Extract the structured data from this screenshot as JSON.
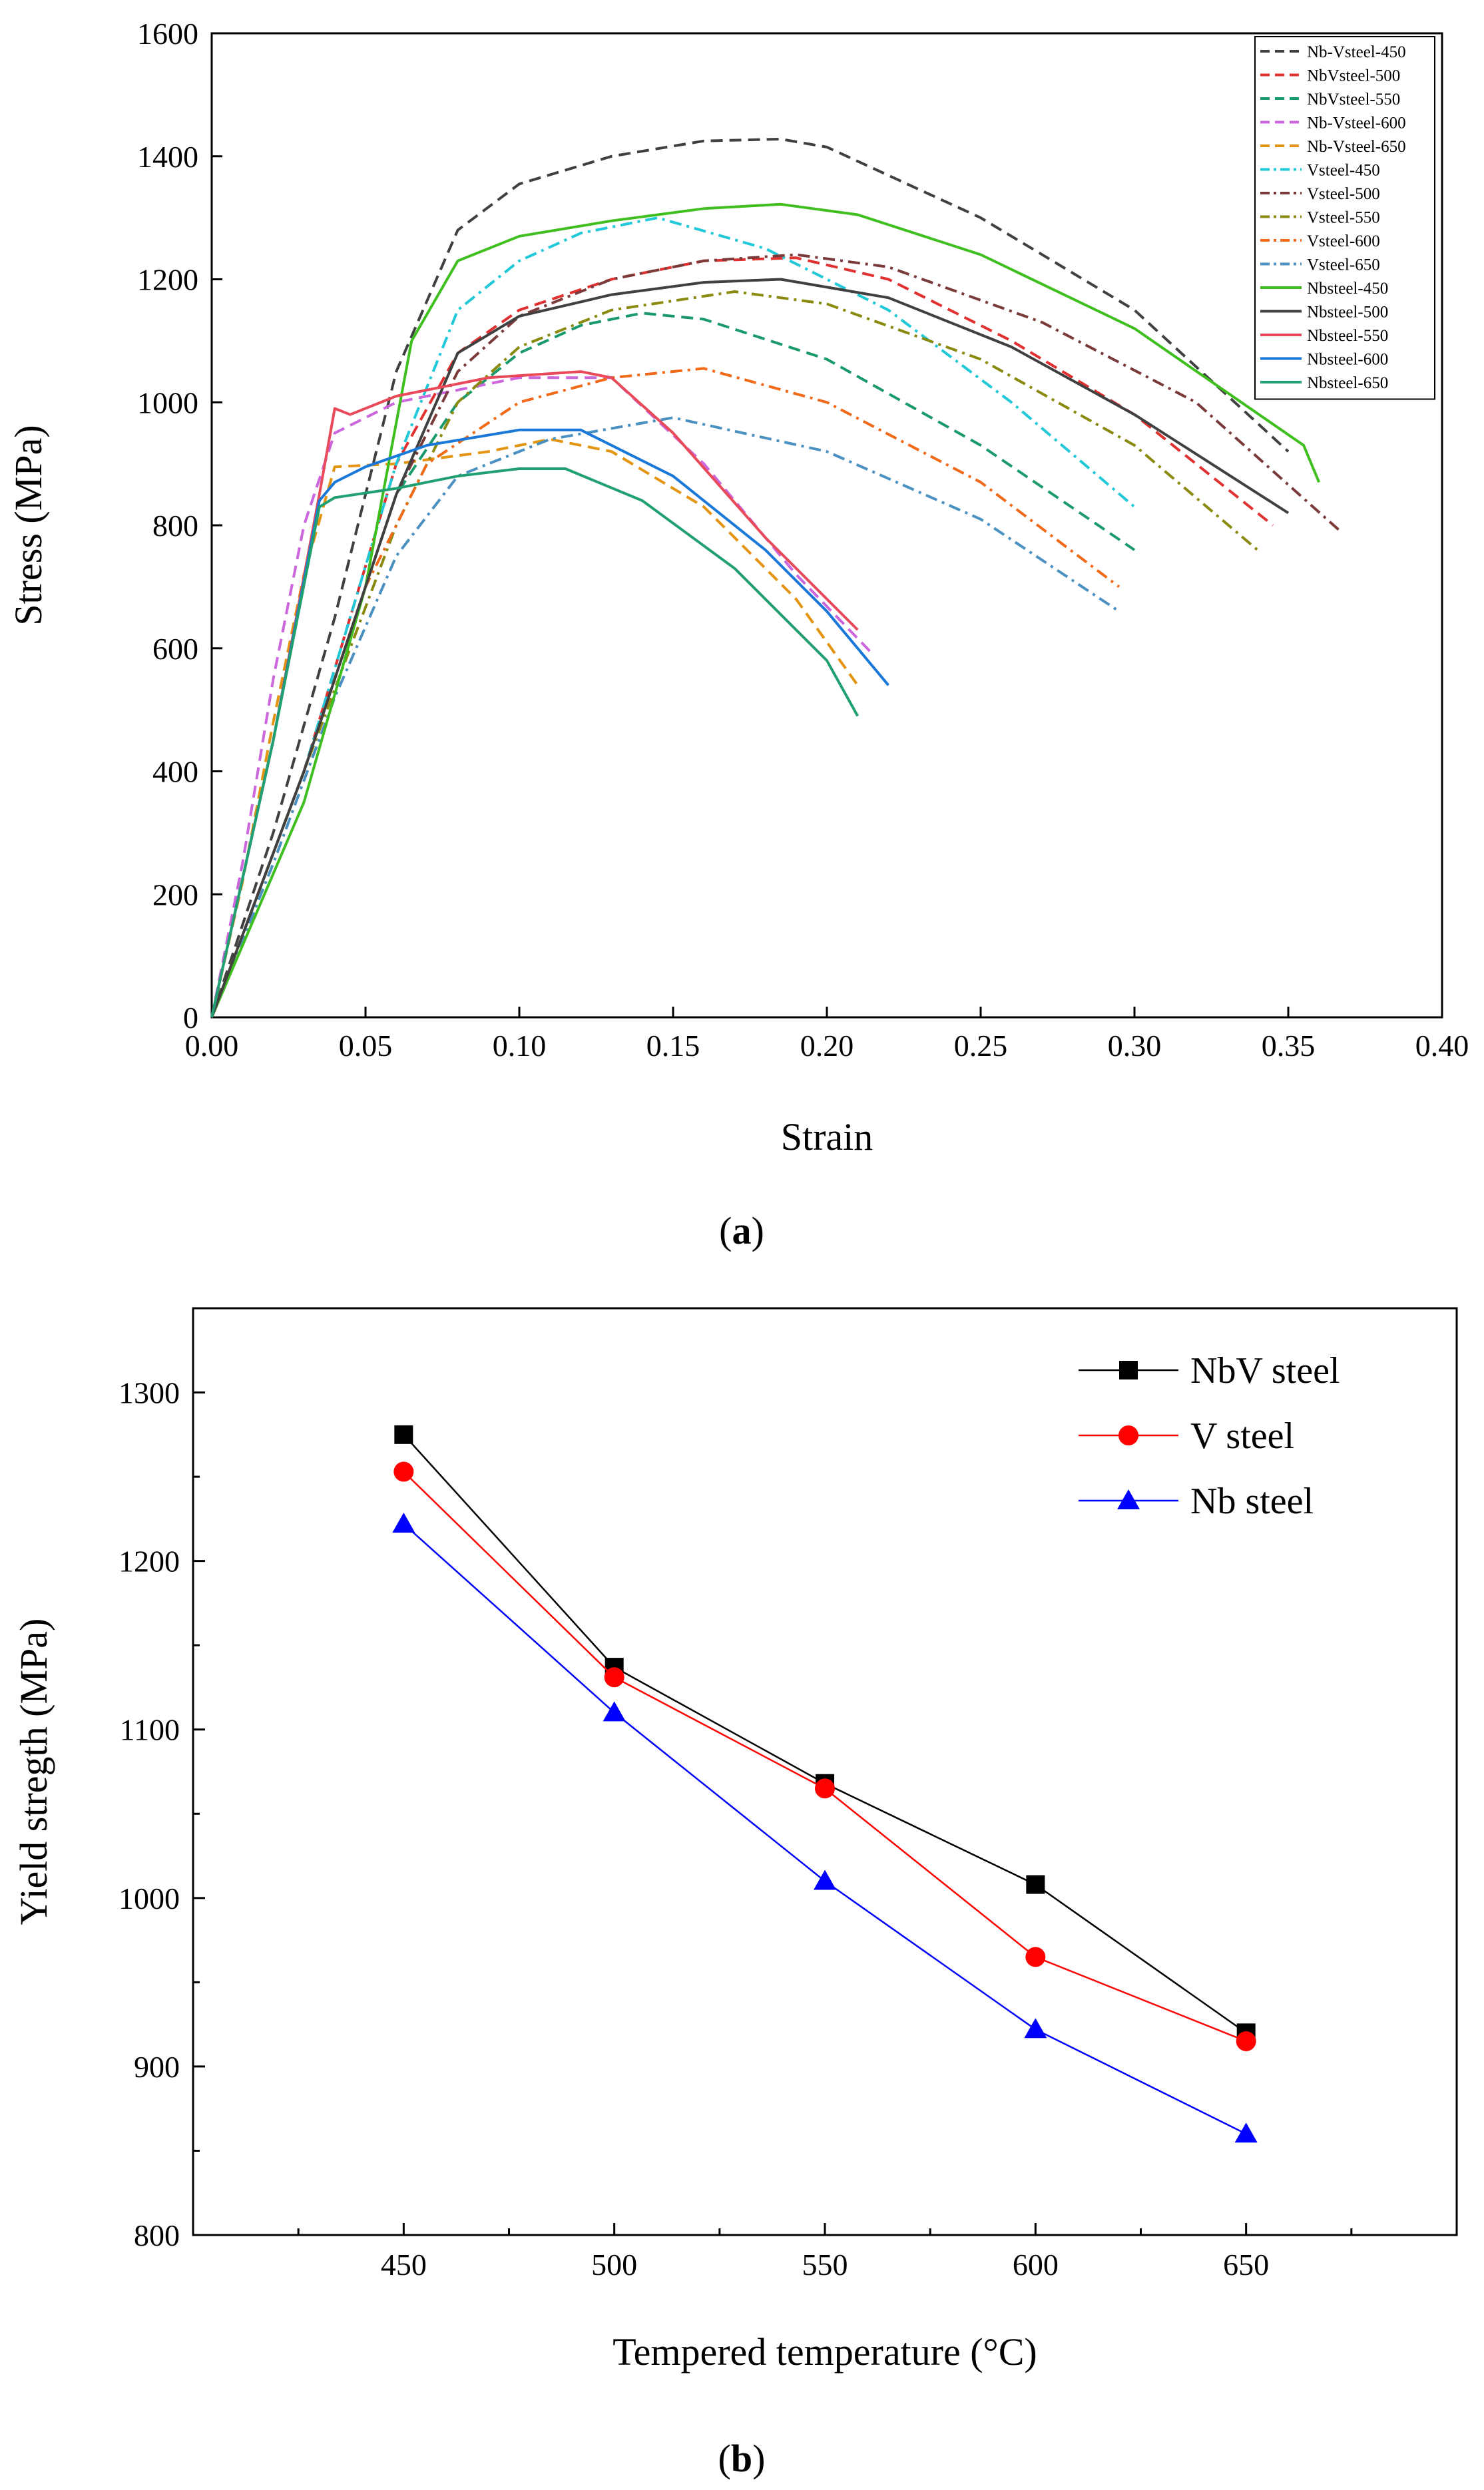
{
  "chart_data": [
    {
      "type": "line",
      "panel": "a",
      "caption_open": "(",
      "caption_letter": "a",
      "caption_close": ")",
      "xlabel": "Strain",
      "ylabel": "Stress (MPa)",
      "xlim": [
        0,
        0.4
      ],
      "ylim": [
        0,
        1600
      ],
      "xticks": [
        0.0,
        0.05,
        0.1,
        0.15,
        0.2,
        0.25,
        0.3,
        0.35,
        0.4
      ],
      "xtick_labels": [
        "0.00",
        "0.05",
        "0.10",
        "0.15",
        "0.20",
        "0.25",
        "0.30",
        "0.35",
        "0.40"
      ],
      "yticks": [
        0,
        200,
        400,
        600,
        800,
        1000,
        1200,
        1400,
        1600
      ],
      "ytick_labels": [
        "0",
        "200",
        "400",
        "600",
        "800",
        "1000",
        "1200",
        "1400",
        "1600"
      ],
      "legend_position": "top-right",
      "series": [
        {
          "name": "Nb-Vsteel-450",
          "color": "#404040",
          "dash": "dash",
          "x": [
            0,
            0.02,
            0.04,
            0.06,
            0.08,
            0.1,
            0.13,
            0.16,
            0.185,
            0.2,
            0.25,
            0.3,
            0.35
          ],
          "y": [
            0,
            300,
            650,
            1050,
            1280,
            1355,
            1400,
            1425,
            1428,
            1415,
            1300,
            1150,
            920
          ]
        },
        {
          "name": "NbVsteel-500",
          "color": "#e03030",
          "dash": "dash",
          "x": [
            0,
            0.03,
            0.06,
            0.08,
            0.1,
            0.13,
            0.16,
            0.19,
            0.22,
            0.26,
            0.3,
            0.345
          ],
          "y": [
            0,
            400,
            900,
            1080,
            1150,
            1200,
            1230,
            1235,
            1200,
            1100,
            980,
            800
          ]
        },
        {
          "name": "NbVsteel-550",
          "color": "#1a9a6a",
          "dash": "dash",
          "x": [
            0,
            0.03,
            0.06,
            0.08,
            0.1,
            0.12,
            0.14,
            0.16,
            0.2,
            0.25,
            0.3
          ],
          "y": [
            0,
            400,
            850,
            1000,
            1080,
            1125,
            1145,
            1135,
            1070,
            930,
            760
          ]
        },
        {
          "name": "Nb-Vsteel-600",
          "color": "#cc66dd",
          "dash": "dash",
          "x": [
            0,
            0.01,
            0.02,
            0.03,
            0.04,
            0.06,
            0.1,
            0.13,
            0.16,
            0.19,
            0.215
          ],
          "y": [
            0,
            250,
            550,
            800,
            950,
            1000,
            1040,
            1040,
            900,
            720,
            590
          ]
        },
        {
          "name": "Nb-Vsteel-650",
          "color": "#e39410",
          "dash": "dash",
          "x": [
            0,
            0.01,
            0.02,
            0.03,
            0.04,
            0.06,
            0.09,
            0.11,
            0.13,
            0.16,
            0.19,
            0.21
          ],
          "y": [
            0,
            220,
            480,
            720,
            895,
            900,
            920,
            940,
            920,
            830,
            680,
            540
          ]
        },
        {
          "name": "Vsteel-450",
          "color": "#20c8d8",
          "dash": "dashdot",
          "x": [
            0,
            0.03,
            0.06,
            0.08,
            0.1,
            0.12,
            0.145,
            0.18,
            0.22,
            0.26,
            0.3
          ],
          "y": [
            0,
            400,
            900,
            1150,
            1230,
            1275,
            1300,
            1250,
            1150,
            1000,
            830
          ]
        },
        {
          "name": "Vsteel-500",
          "color": "#7a3a3a",
          "dash": "dashdot",
          "x": [
            0,
            0.03,
            0.06,
            0.08,
            0.1,
            0.13,
            0.16,
            0.19,
            0.22,
            0.27,
            0.32,
            0.367
          ],
          "y": [
            0,
            400,
            850,
            1050,
            1140,
            1200,
            1230,
            1240,
            1220,
            1130,
            1000,
            790
          ]
        },
        {
          "name": "Vsteel-550",
          "color": "#8a8a10",
          "dash": "dashdot",
          "x": [
            0,
            0.03,
            0.06,
            0.08,
            0.1,
            0.13,
            0.17,
            0.2,
            0.25,
            0.3,
            0.34
          ],
          "y": [
            0,
            400,
            800,
            1000,
            1090,
            1150,
            1180,
            1160,
            1070,
            930,
            760
          ]
        },
        {
          "name": "Vsteel-600",
          "color": "#f06a1a",
          "dash": "dashdot",
          "x": [
            0,
            0.03,
            0.05,
            0.07,
            0.1,
            0.13,
            0.16,
            0.2,
            0.25,
            0.295
          ],
          "y": [
            0,
            400,
            700,
            900,
            1000,
            1040,
            1055,
            1000,
            870,
            700
          ]
        },
        {
          "name": "Vsteel-650",
          "color": "#4a90c0",
          "dash": "dashdot",
          "x": [
            0,
            0.02,
            0.04,
            0.06,
            0.08,
            0.11,
            0.15,
            0.2,
            0.25,
            0.295
          ],
          "y": [
            0,
            250,
            520,
            750,
            880,
            940,
            975,
            920,
            810,
            660
          ]
        },
        {
          "name": "Nbsteel-450",
          "color": "#3fbf1f",
          "dash": "solid",
          "x": [
            0,
            0.03,
            0.05,
            0.065,
            0.08,
            0.1,
            0.13,
            0.16,
            0.185,
            0.21,
            0.25,
            0.3,
            0.355,
            0.36
          ],
          "y": [
            0,
            350,
            700,
            1100,
            1230,
            1270,
            1295,
            1315,
            1322,
            1305,
            1240,
            1120,
            930,
            870
          ]
        },
        {
          "name": "Nbsteel-500",
          "color": "#404040",
          "dash": "solid",
          "x": [
            0,
            0.03,
            0.06,
            0.08,
            0.1,
            0.13,
            0.16,
            0.185,
            0.22,
            0.26,
            0.3,
            0.35
          ],
          "y": [
            0,
            400,
            850,
            1080,
            1140,
            1175,
            1195,
            1200,
            1170,
            1090,
            980,
            820
          ]
        },
        {
          "name": "Nbsteel-550",
          "color": "#e84a5a",
          "dash": "solid",
          "x": [
            0,
            0.02,
            0.035,
            0.04,
            0.045,
            0.06,
            0.09,
            0.12,
            0.13,
            0.15,
            0.18,
            0.21
          ],
          "y": [
            0,
            450,
            850,
            990,
            980,
            1010,
            1040,
            1050,
            1040,
            950,
            780,
            630
          ]
        },
        {
          "name": "Nbsteel-600",
          "color": "#1a78d8",
          "dash": "solid",
          "x": [
            0,
            0.02,
            0.035,
            0.04,
            0.05,
            0.07,
            0.1,
            0.12,
            0.15,
            0.18,
            0.2,
            0.22
          ],
          "y": [
            0,
            450,
            840,
            870,
            895,
            930,
            955,
            955,
            880,
            760,
            660,
            540
          ]
        },
        {
          "name": "Nbsteel-650",
          "color": "#20a070",
          "dash": "solid",
          "x": [
            0,
            0.02,
            0.035,
            0.04,
            0.06,
            0.08,
            0.1,
            0.115,
            0.14,
            0.17,
            0.2,
            0.21
          ],
          "y": [
            0,
            450,
            830,
            845,
            860,
            880,
            892,
            892,
            840,
            730,
            580,
            490
          ]
        }
      ]
    },
    {
      "type": "line",
      "panel": "b",
      "caption_open": "(",
      "caption_letter": "b",
      "caption_close": ")",
      "xlabel": "Tempered temperature (°C)",
      "ylabel": "Yield stregth (MPa)",
      "xlim": [
        400,
        700
      ],
      "ylim": [
        800,
        1350
      ],
      "xticks": [
        450,
        500,
        550,
        600,
        650
      ],
      "xtick_labels": [
        "450",
        "500",
        "550",
        "600",
        "650"
      ],
      "yticks": [
        800,
        900,
        1000,
        1100,
        1200,
        1300
      ],
      "ytick_labels": [
        "800",
        "900",
        "1000",
        "1100",
        "1200",
        "1300"
      ],
      "legend_position": "top-right",
      "x": [
        450,
        500,
        550,
        600,
        650
      ],
      "series": [
        {
          "name": "NbV steel",
          "color": "#000000",
          "marker": "square",
          "values": [
            1275,
            1137,
            1068,
            1008,
            920
          ]
        },
        {
          "name": "V  steel",
          "color": "#ff0000",
          "marker": "circle",
          "values": [
            1253,
            1131,
            1065,
            965,
            915
          ]
        },
        {
          "name": "Nb steel",
          "color": "#0000ff",
          "marker": "triangle",
          "values": [
            1222,
            1110,
            1010,
            922,
            860
          ]
        }
      ]
    }
  ]
}
